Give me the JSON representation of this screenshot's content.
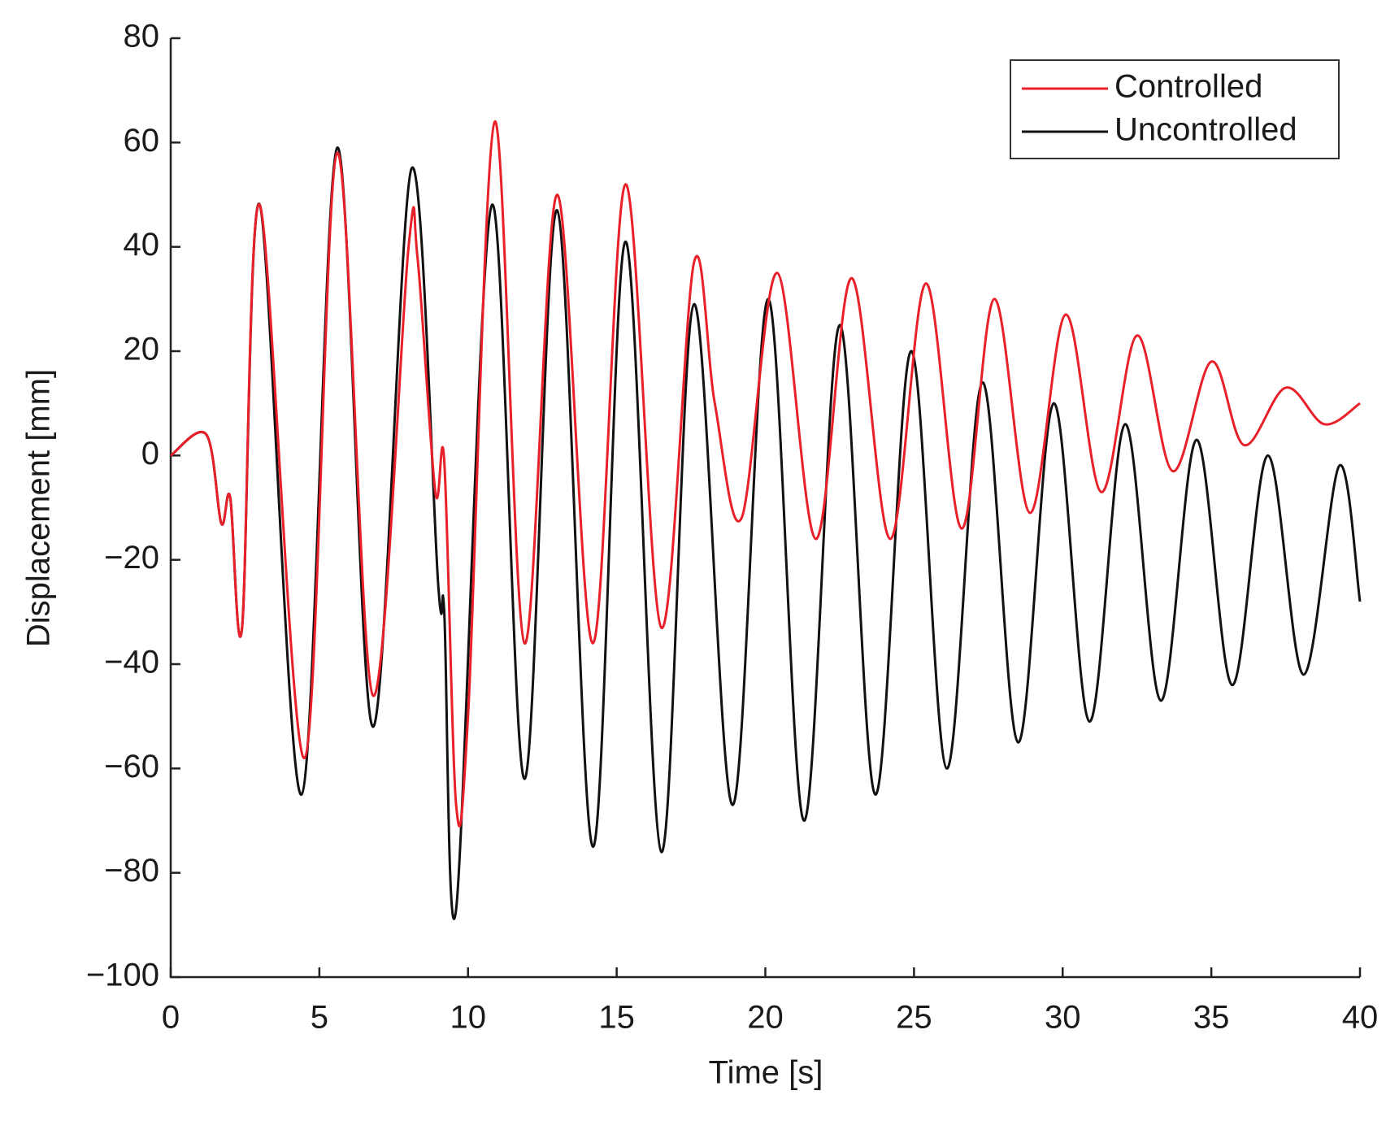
{
  "chart_data": {
    "type": "line",
    "xlabel": "Time [s]",
    "ylabel": "Displacement [mm]",
    "xlim": [
      0,
      40
    ],
    "ylim": [
      -100,
      80
    ],
    "xticks": [
      0,
      5,
      10,
      15,
      20,
      25,
      30,
      35,
      40
    ],
    "yticks": [
      {
        "value": -100,
        "label": "−100"
      },
      {
        "value": -80,
        "label": "−80"
      },
      {
        "value": -60,
        "label": "−60"
      },
      {
        "value": -40,
        "label": "−40"
      },
      {
        "value": -20,
        "label": "−20"
      },
      0,
      20,
      40,
      60,
      80
    ],
    "grid": false,
    "legend": "upper right",
    "series": [
      {
        "name": "Controlled",
        "color": "#e8202a",
        "x": [
          0,
          1.2,
          1.7,
          2.0,
          2.4,
          3.0,
          4.5,
          5.6,
          6.8,
          8.0,
          8.3,
          8.9,
          9.2,
          9.6,
          10.0,
          10.9,
          11.9,
          13.0,
          14.2,
          15.3,
          16.5,
          17.6,
          18.3,
          19.2,
          20.4,
          21.7,
          22.9,
          24.2,
          25.4,
          26.6,
          27.7,
          28.9,
          30.1,
          31.3,
          32.5,
          33.7,
          35.0,
          36.1,
          37.5,
          38.8,
          40
        ],
        "values": [
          0,
          4,
          -13,
          -8,
          -33,
          48,
          -58,
          58,
          -46,
          40,
          38,
          -7,
          -1,
          -67,
          -50,
          64,
          -36,
          50,
          -36,
          52,
          -33,
          37,
          10,
          -12,
          35,
          -16,
          34,
          -16,
          33,
          -14,
          30,
          -11,
          27,
          -7,
          23,
          -3,
          18,
          2,
          13,
          6,
          10
        ]
      },
      {
        "name": "Uncontrolled",
        "color": "#111111",
        "x": [
          0,
          1.2,
          1.7,
          2.0,
          2.4,
          3.0,
          4.4,
          5.6,
          6.8,
          8.1,
          9.0,
          9.2,
          9.6,
          10.8,
          11.9,
          13.0,
          14.2,
          15.3,
          16.5,
          17.6,
          18.9,
          20.1,
          21.3,
          22.5,
          23.7,
          24.9,
          26.1,
          27.3,
          28.5,
          29.7,
          30.9,
          32.1,
          33.3,
          34.5,
          35.7,
          36.9,
          38.1,
          39.3,
          40
        ],
        "values": [
          0,
          4,
          -13,
          -8,
          -33,
          48,
          -65,
          59,
          -52,
          55,
          -25,
          -30,
          -87,
          48,
          -62,
          47,
          -75,
          41,
          -76,
          29,
          -67,
          30,
          -70,
          25,
          -65,
          20,
          -60,
          14,
          -55,
          10,
          -51,
          6,
          -47,
          3,
          -44,
          0,
          -42,
          -2,
          -28
        ]
      }
    ]
  }
}
